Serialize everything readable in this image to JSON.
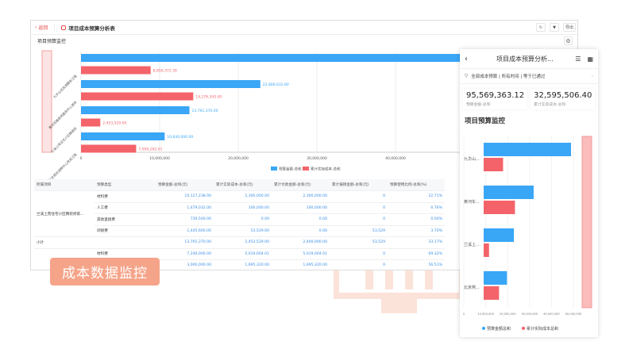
{
  "header": {
    "back_label": "返回",
    "title": "项目成本预算分析表",
    "toolbar": {
      "refresh_icon": "refresh-icon",
      "filter_icon": "filter-icon",
      "export_label": "导出"
    }
  },
  "section_title": "项目预算监控",
  "chart_data": {
    "type": "bar",
    "orientation": "horizontal",
    "categories": [
      "九华山庄改造翻新工程",
      "黄河东路商务服务中心装修",
      "兰溪上苑住宅小区精装修",
      "北京燕京湖畔中心改造工程"
    ],
    "categories_short": [
      "九华山...",
      "黄河东...",
      "兰溪上...",
      "北京燕..."
    ],
    "series": [
      {
        "name": "预算金额-总和",
        "color": "#3aa6f6",
        "values": [
          48331361.32,
          22806631.8,
          13791370.0,
          10640000.0
        ],
        "labels": [
          "",
          "22,806,631.80",
          "13,791,370.00",
          "10,640,000.00"
        ]
      },
      {
        "name": "累计实际成本-总和",
        "color": "#f4636a",
        "values": [
          8856372.39,
          14276343.0,
          2453529.0,
          7009262.01
        ],
        "labels": [
          "8,856,372.39",
          "14,276,343.00",
          "2,453,529.00",
          "7,009,262.01"
        ]
      }
    ],
    "xlim": [
      0,
      50000000
    ],
    "xticks": [
      "0",
      "10,000,000",
      "20,000,000",
      "30,000,000",
      "40,000,000"
    ],
    "mobile_xticks": [
      "0",
      "10,000,000",
      "20,000,000",
      "30,000,000",
      "40,000,000",
      "50,000,000"
    ],
    "mobile_legend": [
      "预算金额总和",
      "累计实际成本总和"
    ],
    "grid": true,
    "legend": "bottom"
  },
  "table": {
    "columns": [
      "所属项目",
      "预算类型",
      "预算金额-总和(元)",
      "累计实际成本-总和(元)",
      "累计付款金额-总和(元)",
      "累计报销金额-总和(元)",
      "预算使用比例-总和(%)"
    ],
    "group": "兰溪上苑住宅小区精装修第...",
    "rows": [
      [
        "材料费",
        "10,127,238.00",
        "2,300,000.00",
        "2,300,000.00",
        "0",
        "22.71%"
      ],
      [
        "人工费",
        "1,479,032.00",
        "100,000.00",
        "100,000.00",
        "0",
        "6.76%"
      ],
      [
        "其他直接费",
        "739,500.00",
        "0.00",
        "0.00",
        "0",
        "0.00%"
      ],
      [
        "间接费",
        "1,445,600.00",
        "53,529.00",
        "0.00",
        "53,529",
        "3.70%"
      ]
    ],
    "subtotal": [
      "小计",
      "13,791,370.00",
      "2,453,529.00",
      "2,400,000.00",
      "53,529",
      "33.17%"
    ],
    "rows2": [
      [
        "材料费",
        "7,240,000.00",
        "5,019,004.01",
        "5,019,004.01",
        "0",
        "69.32%"
      ],
      [
        "",
        "3,000,000.00",
        "1,695,320.00",
        "1,695,320.00",
        "0",
        "56.51%"
      ]
    ]
  },
  "watermark": "成本数据监控",
  "mobile": {
    "title": "项目成本预算分析...",
    "filter": "全部成本预算 | 所有时间 | 等于已通过",
    "kpis": [
      {
        "value": "95,569,363.12",
        "label": "预算金额-总和"
      },
      {
        "value": "32,595,506.40",
        "label": "累计实际成本-总和"
      }
    ],
    "section_title": "项目预算监控"
  }
}
